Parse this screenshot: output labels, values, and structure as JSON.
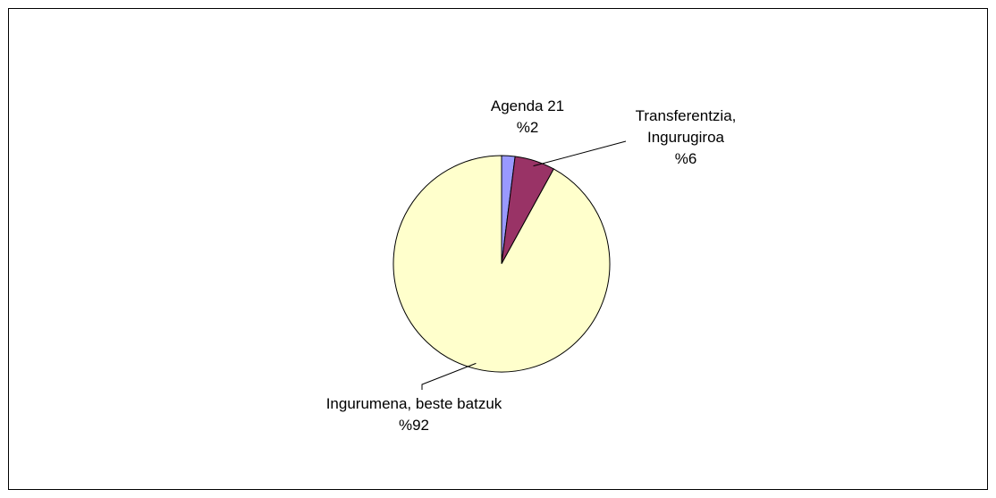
{
  "chart_data": {
    "type": "pie",
    "categories": [
      "Agenda 21",
      "Transferentzia, Ingurugiroa",
      "Ingurumena, beste batzuk"
    ],
    "values": [
      2,
      6,
      92
    ],
    "value_labels": [
      "%2",
      "%6",
      "%92"
    ],
    "colors": [
      "#9999ff",
      "#993366",
      "#ffffcc"
    ]
  }
}
